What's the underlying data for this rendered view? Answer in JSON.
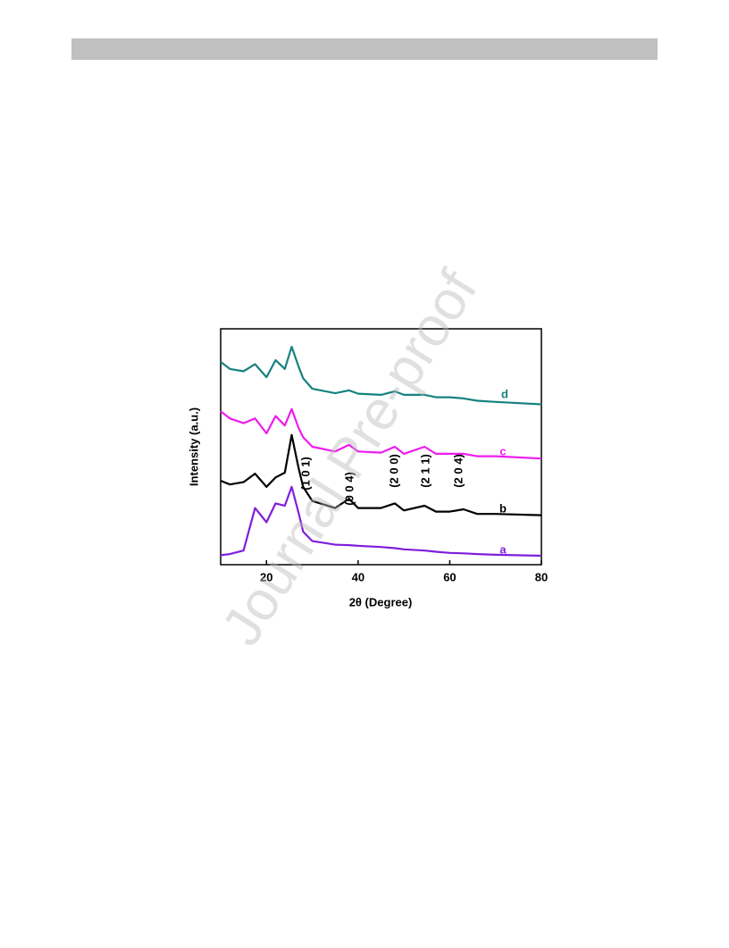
{
  "watermark": "Journal Pre-proof",
  "chart_data": {
    "type": "line",
    "x_label": "2θ (Degree)",
    "y_label": "Intensity (a.u.)",
    "x": [
      10,
      12,
      15,
      17.5,
      20,
      22,
      24,
      25.5,
      27,
      28,
      30,
      35,
      38,
      40,
      45,
      48,
      50,
      54.5,
      57,
      60,
      63,
      66,
      70,
      80
    ],
    "xlim": [
      10,
      80
    ],
    "xticks": [
      20,
      40,
      60,
      80
    ],
    "ylim": [
      0,
      100
    ],
    "series": [
      {
        "name": "a",
        "color": "#7f1fdc",
        "values": [
          4,
          4.5,
          6,
          24,
          18,
          26,
          25,
          33,
          22,
          14,
          10,
          8.5,
          8.3,
          8,
          7.5,
          7,
          6.5,
          6,
          5.5,
          5,
          4.8,
          4.5,
          4.2,
          3.8
        ]
      },
      {
        "name": "b",
        "color": "#000000",
        "values": [
          35.6,
          34,
          35,
          38.6,
          33,
          37,
          39,
          55,
          41,
          33,
          27,
          24,
          28,
          24,
          24,
          26,
          23,
          25,
          22.5,
          22.5,
          23.5,
          21.5,
          21.5,
          21
        ]
      },
      {
        "name": "c",
        "color": "#ee1cee",
        "values": [
          65,
          62,
          60,
          62,
          55.7,
          63,
          59,
          66,
          58,
          54,
          50,
          48,
          50.8,
          48,
          47.5,
          50,
          47,
          50,
          47,
          47,
          47,
          46,
          46,
          45
        ]
      },
      {
        "name": "d",
        "color": "#17827f",
        "values": [
          86,
          83,
          82,
          85,
          79.5,
          86.7,
          83,
          92.4,
          84,
          79,
          74.6,
          72.7,
          73.9,
          72.5,
          72,
          73.5,
          72,
          72,
          71,
          71,
          70.5,
          69.5,
          69,
          68
        ]
      }
    ],
    "annotations": [
      "(1 0 1)",
      "(0 0 4)",
      "(2 0 0)",
      "(2 1 1)",
      "(2 0 4)"
    ]
  }
}
